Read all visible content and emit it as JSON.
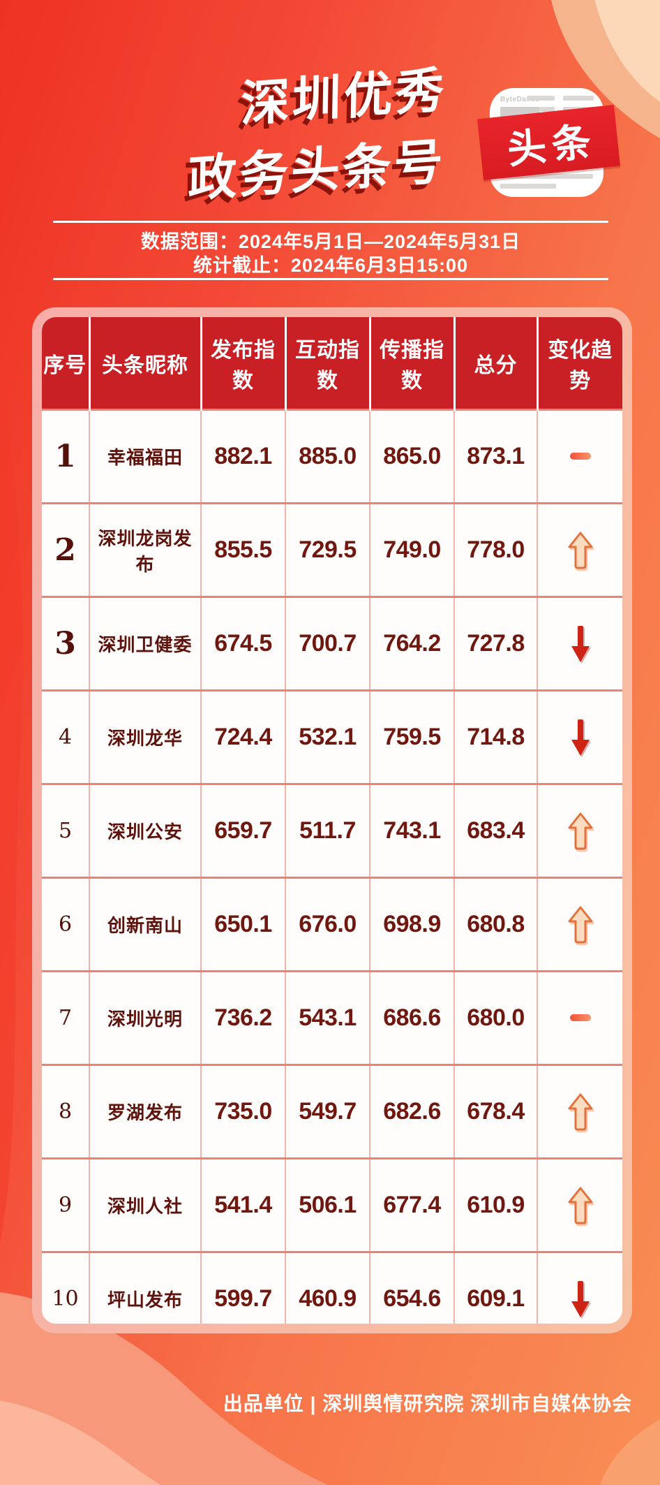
{
  "header": {
    "title_line1": "深圳优秀",
    "title_line2": "政务头条号",
    "logo_brand": "ByteDance",
    "logo_badge": "头条",
    "date_range": "数据范围：2024年5月1日—2024年5月31日",
    "deadline": "统计截止：2024年6月3日15:00"
  },
  "table": {
    "columns": [
      "序号",
      "头条昵称",
      "发布指数",
      "互动指数",
      "传播指数",
      "总分",
      "变化趋势"
    ],
    "rows": [
      {
        "rank": "1",
        "name": "幸福福田",
        "publish": "882.1",
        "interact": "885.0",
        "spread": "865.0",
        "total": "873.1",
        "trend": "flat"
      },
      {
        "rank": "2",
        "name": "深圳龙岗发布",
        "publish": "855.5",
        "interact": "729.5",
        "spread": "749.0",
        "total": "778.0",
        "trend": "up"
      },
      {
        "rank": "3",
        "name": "深圳卫健委",
        "publish": "674.5",
        "interact": "700.7",
        "spread": "764.2",
        "total": "727.8",
        "trend": "down"
      },
      {
        "rank": "4",
        "name": "深圳龙华",
        "publish": "724.4",
        "interact": "532.1",
        "spread": "759.5",
        "total": "714.8",
        "trend": "down"
      },
      {
        "rank": "5",
        "name": "深圳公安",
        "publish": "659.7",
        "interact": "511.7",
        "spread": "743.1",
        "total": "683.4",
        "trend": "up"
      },
      {
        "rank": "6",
        "name": "创新南山",
        "publish": "650.1",
        "interact": "676.0",
        "spread": "698.9",
        "total": "680.8",
        "trend": "up"
      },
      {
        "rank": "7",
        "name": "深圳光明",
        "publish": "736.2",
        "interact": "543.1",
        "spread": "686.6",
        "total": "680.0",
        "trend": "flat"
      },
      {
        "rank": "8",
        "name": "罗湖发布",
        "publish": "735.0",
        "interact": "549.7",
        "spread": "682.6",
        "total": "678.4",
        "trend": "up"
      },
      {
        "rank": "9",
        "name": "深圳人社",
        "publish": "541.4",
        "interact": "506.1",
        "spread": "677.4",
        "total": "610.9",
        "trend": "up"
      },
      {
        "rank": "10",
        "name": "坪山发布",
        "publish": "599.7",
        "interact": "460.9",
        "spread": "654.6",
        "total": "609.1",
        "trend": "down"
      }
    ]
  },
  "footer": {
    "credit": "出品单位 | 深圳舆情研究院 深圳市自媒体协会"
  },
  "colors": {
    "bg_red": "#ee3122",
    "bg_orange": "#f98e55",
    "header_red": "#c92026",
    "card_frame_pink": "#f7aea8",
    "text_maroon": "#5d120c",
    "grid_salmon": "#ee8173",
    "trend_up_fill": "#fbdcc1",
    "trend_up_stroke": "#e4703a",
    "trend_down_red": "#cd2415",
    "trend_flat_start": "#f4503a",
    "trend_flat_end": "#fa9469"
  },
  "chart_data": {
    "type": "table",
    "title": "深圳优秀政务头条号",
    "subtitle": [
      "数据范围：2024年5月1日—2024年5月31日",
      "统计截止：2024年6月3日15:00"
    ],
    "columns": [
      "序号",
      "头条昵称",
      "发布指数",
      "互动指数",
      "传播指数",
      "总分",
      "变化趋势"
    ],
    "rows": [
      [
        "1",
        "幸福福田",
        882.1,
        885.0,
        865.0,
        873.1,
        "持平"
      ],
      [
        "2",
        "深圳龙岗发布",
        855.5,
        729.5,
        749.0,
        778.0,
        "上升"
      ],
      [
        "3",
        "深圳卫健委",
        674.5,
        700.7,
        764.2,
        727.8,
        "下降"
      ],
      [
        "4",
        "深圳龙华",
        724.4,
        532.1,
        759.5,
        714.8,
        "下降"
      ],
      [
        "5",
        "深圳公安",
        659.7,
        511.7,
        743.1,
        683.4,
        "上升"
      ],
      [
        "6",
        "创新南山",
        650.1,
        676.0,
        698.9,
        680.8,
        "上升"
      ],
      [
        "7",
        "深圳光明",
        736.2,
        543.1,
        686.6,
        680.0,
        "持平"
      ],
      [
        "8",
        "罗湖发布",
        735.0,
        549.7,
        682.6,
        678.4,
        "上升"
      ],
      [
        "9",
        "深圳人社",
        541.4,
        506.1,
        677.4,
        610.9,
        "上升"
      ],
      [
        "10",
        "坪山发布",
        599.7,
        460.9,
        654.6,
        609.1,
        "下降"
      ]
    ]
  }
}
